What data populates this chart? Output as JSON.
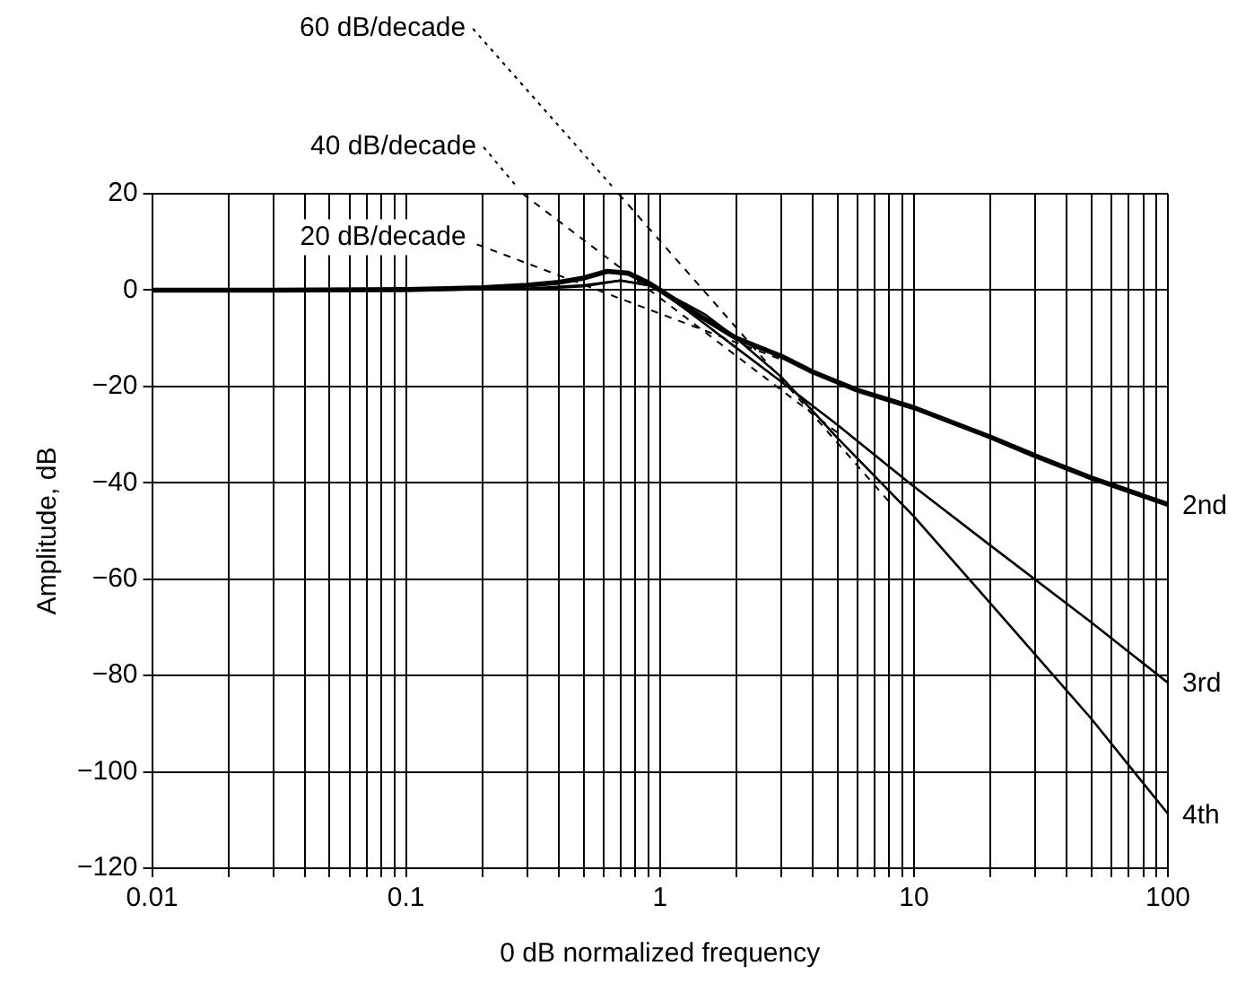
{
  "chart_data": {
    "type": "line",
    "xlabel": "0 dB normalized frequency",
    "ylabel": "Amplitude, dB",
    "log": "x",
    "grid": true,
    "legend": false,
    "marker": "none",
    "xlim": [
      0.01,
      100
    ],
    "xticks": [
      0.01,
      {
        "value": 0.02,
        "label": null
      },
      {
        "value": 0.03,
        "label": null
      },
      {
        "value": 0.04,
        "label": null
      },
      {
        "value": 0.05,
        "label": null
      },
      {
        "value": 0.06,
        "label": null
      },
      {
        "value": 0.07,
        "label": null
      },
      {
        "value": 0.08,
        "label": null
      },
      {
        "value": 0.09,
        "label": null
      },
      0.1,
      {
        "value": 0.2,
        "label": null
      },
      {
        "value": 0.3,
        "label": null
      },
      {
        "value": 0.4,
        "label": null
      },
      {
        "value": 0.5,
        "label": null
      },
      {
        "value": 0.6,
        "label": null
      },
      {
        "value": 0.7,
        "label": null
      },
      {
        "value": 0.8,
        "label": null
      },
      {
        "value": 0.9,
        "label": null
      },
      1,
      {
        "value": 2,
        "label": null
      },
      {
        "value": 3,
        "label": null
      },
      {
        "value": 4,
        "label": null
      },
      {
        "value": 5,
        "label": null
      },
      {
        "value": 6,
        "label": null
      },
      {
        "value": 7,
        "label": null
      },
      {
        "value": 8,
        "label": null
      },
      {
        "value": 9,
        "label": null
      },
      10,
      {
        "value": 20,
        "label": null
      },
      {
        "value": 30,
        "label": null
      },
      {
        "value": 40,
        "label": null
      },
      {
        "value": 50,
        "label": null
      },
      {
        "value": 60,
        "label": null
      },
      {
        "value": 70,
        "label": null
      },
      {
        "value": 80,
        "label": null
      },
      {
        "value": 90,
        "label": null
      },
      100
    ],
    "ylim": [
      -120,
      20
    ],
    "yticks": [
      {
        "value": -120,
        "label": "−120"
      },
      {
        "value": -100,
        "label": "−100"
      },
      {
        "value": -80,
        "label": "−80"
      },
      {
        "value": -60,
        "label": "−60"
      },
      {
        "value": -40,
        "label": "−40"
      },
      {
        "value": -20,
        "label": "−20"
      },
      0,
      20
    ],
    "series": [
      {
        "name": "2nd",
        "color": "#000000",
        "line_style": "solid",
        "x": [
          0.01,
          0.03,
          0.1,
          0.2,
          0.3,
          0.4,
          0.5,
          0.62,
          0.75,
          0.9,
          1,
          1.3,
          2,
          3,
          4,
          6,
          10,
          20,
          30,
          50,
          100
        ],
        "values": [
          0,
          0,
          0.1,
          0.5,
          1,
          1.6,
          2.5,
          3.9,
          3.5,
          1.5,
          0,
          -4,
          -10,
          -13.7,
          -17,
          -20.8,
          -24.4,
          -30.5,
          -34.4,
          -39,
          -44.5
        ]
      },
      {
        "name": "3rd",
        "color": "#000000",
        "line_style": "solid",
        "x": [
          0.01,
          0.1,
          0.3,
          0.5,
          0.7,
          0.9,
          1,
          1.5,
          2,
          3,
          5,
          10,
          20,
          50,
          100
        ],
        "values": [
          0,
          0,
          0.3,
          1,
          2,
          1,
          0,
          -7,
          -12,
          -19,
          -28,
          -40.8,
          -53,
          -69,
          -81.5
        ]
      },
      {
        "name": "4th",
        "color": "#000000",
        "line_style": "solid",
        "x": [
          0.01,
          0.1,
          0.3,
          0.5,
          0.7,
          0.9,
          1,
          1.5,
          2,
          3,
          5,
          10,
          20,
          50,
          100
        ],
        "values": [
          0,
          0,
          0.2,
          0.8,
          2,
          1,
          0,
          -5,
          -10,
          -18,
          -30.7,
          -47,
          -65,
          -89,
          -108.7
        ]
      },
      {
        "color": "#000000",
        "line_style": "dashed",
        "x": [
          0.19,
          3
        ],
        "values": [
          9.5,
          -14.4
        ]
      },
      {
        "color": "#000000",
        "line_style": "dashed",
        "x": [
          0.288,
          5
        ],
        "values": [
          20,
          -29.6
        ]
      },
      {
        "color": "#000000",
        "line_style": "dashed",
        "x": [
          0.687,
          8.1
        ],
        "values": [
          20,
          -44.3
        ]
      }
    ],
    "annotations": [
      {
        "text": "20 dB/decade",
        "x": 0.19,
        "y": 9.5
      },
      {
        "text": "40 dB/decade",
        "x": 0.288,
        "y": 20
      },
      {
        "text": "60 dB/decade",
        "x": 0.687,
        "y": 20
      }
    ]
  }
}
